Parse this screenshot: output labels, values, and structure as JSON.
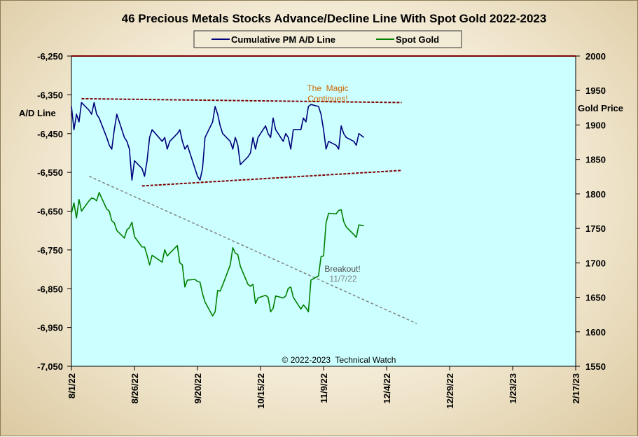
{
  "chart_data": {
    "type": "line",
    "title": "46 Precious Metals Stocks Advance/Decline Line With Spot Gold 2022-2023",
    "ylabel_left": "A/D Line",
    "ylabel_right": "Gold Price",
    "ylim_left": [
      -7050,
      -6250
    ],
    "ylim_right": [
      1550,
      2000
    ],
    "left_ticks": [
      "-6,250",
      "-6,350",
      "-6,450",
      "-6,550",
      "-6,650",
      "-6,750",
      "-6,850",
      "-6,950",
      "-7,050"
    ],
    "left_tick_values": [
      -6250,
      -6350,
      -6450,
      -6550,
      -6650,
      -6750,
      -6850,
      -6950,
      -7050
    ],
    "right_ticks": [
      "2000",
      "1950",
      "1900",
      "1850",
      "1800",
      "1750",
      "1700",
      "1650",
      "1600",
      "1550"
    ],
    "right_tick_values": [
      2000,
      1950,
      1900,
      1850,
      1800,
      1750,
      1700,
      1650,
      1600,
      1550
    ],
    "x_ticks": [
      "8/1/22",
      "8/26/22",
      "9/20/22",
      "10/15/22",
      "11/9/22",
      "12/4/22",
      "12/29/22",
      "1/23/23",
      "2/17/23"
    ],
    "x_tick_dates": [
      "2022-08-01",
      "2022-08-26",
      "2022-09-20",
      "2022-10-15",
      "2022-11-09",
      "2022-12-04",
      "2022-12-29",
      "2023-01-23",
      "2023-02-17"
    ],
    "xlim": [
      "2022-08-01",
      "2023-02-17"
    ],
    "legend": {
      "placement": "top-center",
      "entries": [
        "Cumulative PM A/D Line",
        "Spot Gold"
      ]
    },
    "colors": {
      "ad_line": "#00007a",
      "gold": "#008000",
      "plot_bg": "#ccffff",
      "channel": "#800000",
      "trendline": "#808080",
      "magic_text": "#cc6600",
      "breakout_text": "#505050"
    },
    "series": [
      {
        "name": "Cumulative PM A/D Line",
        "axis": "left",
        "x": [
          "2022-08-01",
          "2022-08-02",
          "2022-08-03",
          "2022-08-04",
          "2022-08-05",
          "2022-08-08",
          "2022-08-09",
          "2022-08-10",
          "2022-08-11",
          "2022-08-12",
          "2022-08-15",
          "2022-08-16",
          "2022-08-17",
          "2022-08-18",
          "2022-08-19",
          "2022-08-22",
          "2022-08-23",
          "2022-08-24",
          "2022-08-25",
          "2022-08-26",
          "2022-08-29",
          "2022-08-30",
          "2022-08-31",
          "2022-09-01",
          "2022-09-02",
          "2022-09-06",
          "2022-09-07",
          "2022-09-08",
          "2022-09-09",
          "2022-09-12",
          "2022-09-13",
          "2022-09-14",
          "2022-09-15",
          "2022-09-16",
          "2022-09-19",
          "2022-09-20",
          "2022-09-21",
          "2022-09-22",
          "2022-09-23",
          "2022-09-26",
          "2022-09-27",
          "2022-09-28",
          "2022-09-29",
          "2022-09-30",
          "2022-10-03",
          "2022-10-04",
          "2022-10-05",
          "2022-10-06",
          "2022-10-07",
          "2022-10-10",
          "2022-10-11",
          "2022-10-12",
          "2022-10-13",
          "2022-10-14",
          "2022-10-17",
          "2022-10-18",
          "2022-10-19",
          "2022-10-20",
          "2022-10-21",
          "2022-10-24",
          "2022-10-25",
          "2022-10-26",
          "2022-10-27",
          "2022-10-28",
          "2022-10-31",
          "2022-11-01",
          "2022-11-02",
          "2022-11-03",
          "2022-11-04",
          "2022-11-07",
          "2022-11-08",
          "2022-11-09",
          "2022-11-10",
          "2022-11-11",
          "2022-11-14",
          "2022-11-15",
          "2022-11-16",
          "2022-11-17",
          "2022-11-18",
          "2022-11-21",
          "2022-11-22",
          "2022-11-23",
          "2022-11-25"
        ],
        "values": [
          -6380,
          -6440,
          -6400,
          -6420,
          -6370,
          -6390,
          -6400,
          -6370,
          -6400,
          -6410,
          -6460,
          -6480,
          -6490,
          -6440,
          -6400,
          -6460,
          -6470,
          -6490,
          -6570,
          -6520,
          -6540,
          -6560,
          -6520,
          -6460,
          -6440,
          -6470,
          -6460,
          -6490,
          -6470,
          -6450,
          -6440,
          -6470,
          -6490,
          -6480,
          -6540,
          -6560,
          -6570,
          -6540,
          -6460,
          -6420,
          -6380,
          -6400,
          -6430,
          -6450,
          -6470,
          -6490,
          -6460,
          -6480,
          -6530,
          -6510,
          -6500,
          -6460,
          -6490,
          -6460,
          -6430,
          -6450,
          -6460,
          -6410,
          -6440,
          -6470,
          -6450,
          -6460,
          -6490,
          -6440,
          -6440,
          -6410,
          -6420,
          -6380,
          -6375,
          -6380,
          -6400,
          -6440,
          -6490,
          -6470,
          -6480,
          -6490,
          -6430,
          -6450,
          -6460,
          -6470,
          -6480,
          -6450,
          -6460
        ]
      },
      {
        "name": "Spot Gold",
        "axis": "right",
        "x": [
          "2022-08-01",
          "2022-08-02",
          "2022-08-03",
          "2022-08-04",
          "2022-08-05",
          "2022-08-08",
          "2022-08-09",
          "2022-08-10",
          "2022-08-11",
          "2022-08-12",
          "2022-08-15",
          "2022-08-16",
          "2022-08-17",
          "2022-08-18",
          "2022-08-19",
          "2022-08-22",
          "2022-08-23",
          "2022-08-24",
          "2022-08-25",
          "2022-08-26",
          "2022-08-29",
          "2022-08-30",
          "2022-08-31",
          "2022-09-01",
          "2022-09-02",
          "2022-09-06",
          "2022-09-07",
          "2022-09-08",
          "2022-09-09",
          "2022-09-12",
          "2022-09-13",
          "2022-09-14",
          "2022-09-15",
          "2022-09-16",
          "2022-09-19",
          "2022-09-20",
          "2022-09-21",
          "2022-09-22",
          "2022-09-23",
          "2022-09-26",
          "2022-09-27",
          "2022-09-28",
          "2022-09-29",
          "2022-09-30",
          "2022-10-03",
          "2022-10-04",
          "2022-10-05",
          "2022-10-06",
          "2022-10-07",
          "2022-10-10",
          "2022-10-11",
          "2022-10-12",
          "2022-10-13",
          "2022-10-14",
          "2022-10-17",
          "2022-10-18",
          "2022-10-19",
          "2022-10-20",
          "2022-10-21",
          "2022-10-24",
          "2022-10-25",
          "2022-10-26",
          "2022-10-27",
          "2022-10-28",
          "2022-10-31",
          "2022-11-01",
          "2022-11-02",
          "2022-11-03",
          "2022-11-04",
          "2022-11-07",
          "2022-11-08",
          "2022-11-09",
          "2022-11-10",
          "2022-11-11",
          "2022-11-14",
          "2022-11-15",
          "2022-11-16",
          "2022-11-17",
          "2022-11-18",
          "2022-11-21",
          "2022-11-22",
          "2022-11-23",
          "2022-11-25"
        ],
        "values": [
          1772,
          1787,
          1765,
          1792,
          1775,
          1790,
          1794,
          1793,
          1790,
          1802,
          1778,
          1775,
          1761,
          1758,
          1747,
          1736,
          1748,
          1751,
          1759,
          1738,
          1723,
          1723,
          1711,
          1697,
          1711,
          1701,
          1719,
          1710,
          1714,
          1725,
          1700,
          1697,
          1665,
          1675,
          1676,
          1673,
          1672,
          1655,
          1643,
          1623,
          1629,
          1660,
          1659,
          1668,
          1697,
          1722,
          1714,
          1712,
          1695,
          1669,
          1666,
          1669,
          1641,
          1649,
          1653,
          1650,
          1629,
          1634,
          1652,
          1649,
          1652,
          1663,
          1665,
          1650,
          1633,
          1639,
          1635,
          1629,
          1675,
          1681,
          1709,
          1710,
          1758,
          1772,
          1771,
          1776,
          1777,
          1760,
          1752,
          1741,
          1737,
          1755,
          1754
        ]
      }
    ],
    "channel_lines": [
      {
        "label": "upper-channel",
        "axis": "left",
        "x": [
          "2022-08-05",
          "2022-12-10"
        ],
        "y": [
          -6360,
          -6370
        ]
      },
      {
        "label": "lower-channel",
        "axis": "left",
        "x": [
          "2022-08-29",
          "2022-12-10"
        ],
        "y": [
          -6585,
          -6545
        ]
      }
    ],
    "trendline": {
      "axis": "left",
      "x": [
        "2022-08-08",
        "2022-12-16"
      ],
      "y": [
        -6560,
        -6940
      ]
    },
    "annotations": {
      "magic": [
        "The  Magic",
        "Continues!"
      ],
      "breakout": [
        "Breakout!",
        "11/7/22"
      ]
    },
    "copyright": "© 2022-2023  Technical Watch"
  }
}
